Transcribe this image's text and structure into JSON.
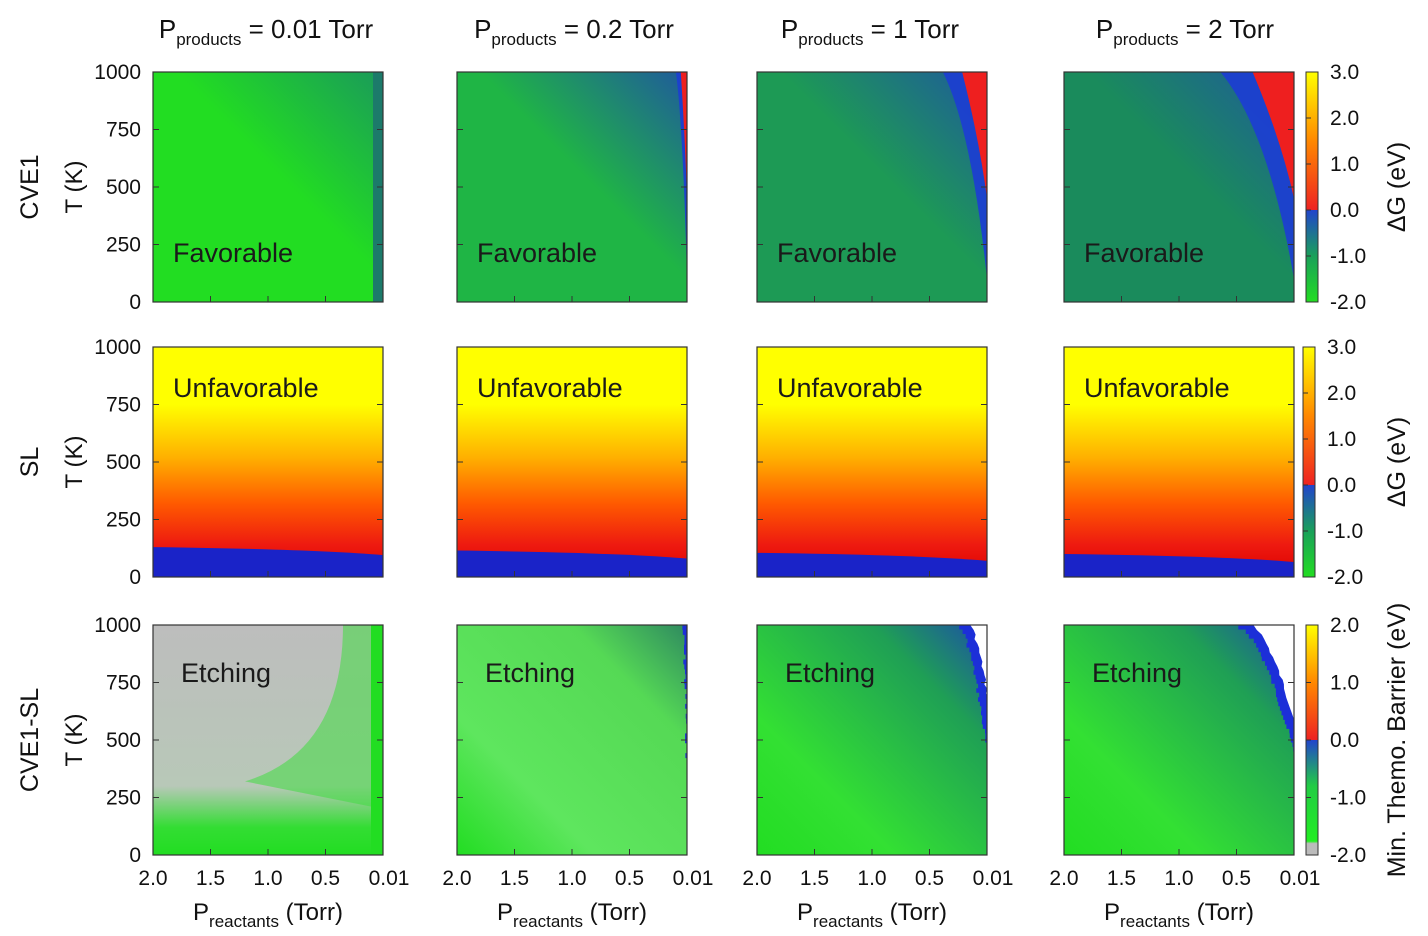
{
  "chart_data": {
    "type": "heatmap",
    "column_headers": [
      {
        "base": "P",
        "sub": "products",
        "rest": " = 0.01 Torr"
      },
      {
        "base": "P",
        "sub": "products",
        "rest": " = 0.2 Torr"
      },
      {
        "base": "P",
        "sub": "products",
        "rest": " = 1 Torr"
      },
      {
        "base": "P",
        "sub": "products",
        "rest": " = 2 Torr"
      }
    ],
    "row_labels": [
      "CVE1",
      "SL",
      "CVE1-SL"
    ],
    "ylabel": "T  (K)",
    "xlabel": {
      "base": "P",
      "sub": "reactants",
      "rest": " (Torr)"
    },
    "x_ticks": [
      "2.0",
      "1.5",
      "1.0",
      "0.5",
      "0.01"
    ],
    "y_ticks": [
      "0",
      "250",
      "500",
      "750",
      "1000"
    ],
    "xlim": [
      2.0,
      0.01
    ],
    "ylim": [
      0,
      1000
    ],
    "region_labels": [
      "Favorable",
      "Unfavorable",
      "Etching"
    ],
    "colorbars": [
      {
        "label": "ΔG (eV)",
        "ticks": [
          "3.0",
          "2.0",
          "1.0",
          "0.0",
          "-1.0",
          "-2.0"
        ],
        "range": [
          -2.0,
          3.0
        ]
      },
      {
        "label": "ΔG (eV)",
        "ticks": [
          "3.0",
          "2.0",
          "1.0",
          "0.0",
          "-1.0",
          "-2.0"
        ],
        "range": [
          -2.0,
          3.0
        ]
      },
      {
        "label": "Min. Themo. Barrier (eV)",
        "ticks": [
          "2.0",
          "1.0",
          "0.0",
          "-1.0",
          "-2.0"
        ],
        "range": [
          -2.0,
          2.0
        ]
      }
    ],
    "panels": [
      {
        "row": 0,
        "col": 0,
        "region": "Favorable",
        "pattern": "cve1",
        "threshold_fraction": 0.0
      },
      {
        "row": 0,
        "col": 1,
        "region": "Favorable",
        "pattern": "cve1",
        "threshold_fraction": 0.03
      },
      {
        "row": 0,
        "col": 2,
        "region": "Favorable",
        "pattern": "cve1",
        "threshold_fraction": 0.12
      },
      {
        "row": 0,
        "col": 3,
        "region": "Favorable",
        "pattern": "cve1",
        "threshold_fraction": 0.2
      },
      {
        "row": 1,
        "col": 0,
        "region": "Unfavorable",
        "pattern": "sl",
        "min_T": 130
      },
      {
        "row": 1,
        "col": 1,
        "region": "Unfavorable",
        "pattern": "sl",
        "min_T": 115
      },
      {
        "row": 1,
        "col": 2,
        "region": "Unfavorable",
        "pattern": "sl",
        "min_T": 105
      },
      {
        "row": 1,
        "col": 3,
        "region": "Unfavorable",
        "pattern": "sl",
        "min_T": 100
      },
      {
        "row": 2,
        "col": 0,
        "region": "Etching",
        "pattern": "etch",
        "threshold_fraction": 0.0
      },
      {
        "row": 2,
        "col": 1,
        "region": "Etching",
        "pattern": "etch",
        "threshold_fraction": 0.02
      },
      {
        "row": 2,
        "col": 2,
        "region": "Etching",
        "pattern": "etch",
        "threshold_fraction": 0.12
      },
      {
        "row": 2,
        "col": 3,
        "region": "Etching",
        "pattern": "etch",
        "threshold_fraction": 0.24
      }
    ]
  }
}
